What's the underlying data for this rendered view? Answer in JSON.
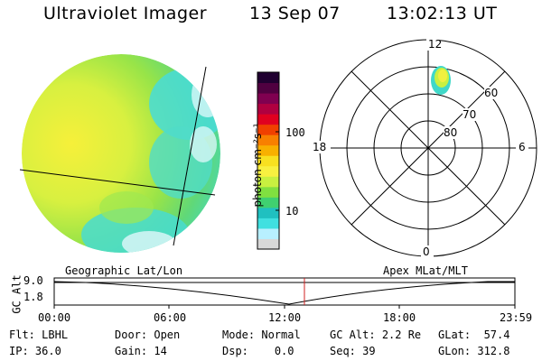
{
  "header": {
    "instrument": "Ultraviolet Imager",
    "date": "13 Sep 07",
    "time": "13:02:13 UT"
  },
  "colorbar": {
    "ticks": [
      "100",
      "10"
    ],
    "unit_label": "photon cm⁻²s⁻¹",
    "colors": [
      "#d8d8d8",
      "#b8f0ff",
      "#40e0e0",
      "#20c0c0",
      "#40d070",
      "#80e040",
      "#c8f040",
      "#f8f040",
      "#f8e020",
      "#f8b000",
      "#f88000",
      "#f04000",
      "#e00020",
      "#b00040",
      "#800050",
      "#500040",
      "#200030"
    ]
  },
  "polar_plot": {
    "mlt_labels": {
      "top": "12",
      "bottom": "0",
      "left": "18",
      "right": "6"
    },
    "lat_labels": [
      "60",
      "70",
      "80"
    ]
  },
  "timeline": {
    "left_label": "Geographic Lat/Lon",
    "right_label": "Apex MLat/MLT",
    "y_axis_label": "GC Alt",
    "y_ticks": [
      "9.0",
      "1.8"
    ],
    "x_ticks": [
      "00:00",
      "06:00",
      "12:00",
      "18:00",
      "23:59"
    ],
    "marker_time": "13:02"
  },
  "info": {
    "row1": [
      {
        "label": "Flt:",
        "value": "LBHL"
      },
      {
        "label": "Door:",
        "value": "Open"
      },
      {
        "label": "Mode:",
        "value": "Normal"
      },
      {
        "label": "GC Alt:",
        "value": "2.2 Re"
      },
      {
        "label": "GLat:",
        "value": "57.4"
      }
    ],
    "row2": [
      {
        "label": "IP:",
        "value": "36.0"
      },
      {
        "label": "Gain:",
        "value": "14"
      },
      {
        "label": "Dsp:",
        "value": "0.0"
      },
      {
        "label": "Seq:",
        "value": "39"
      },
      {
        "label": "GLon:",
        "value": "312.8"
      }
    ]
  }
}
